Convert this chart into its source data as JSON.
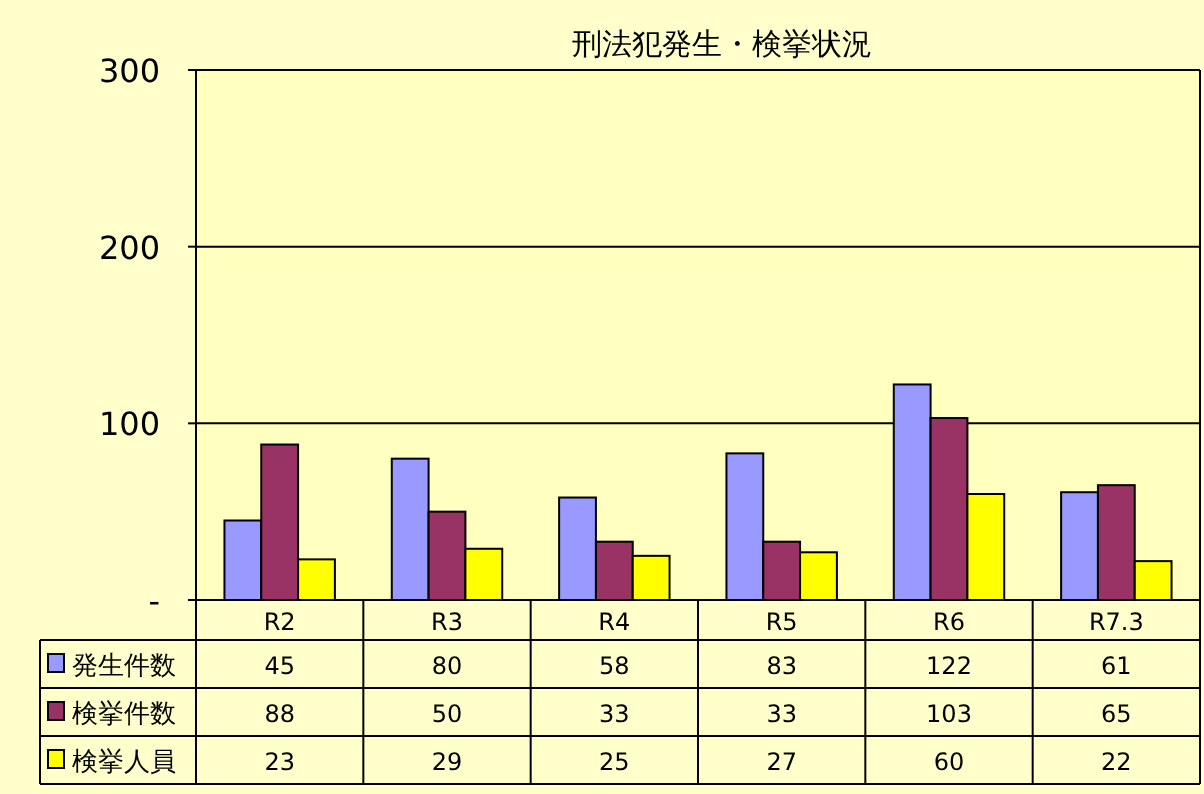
{
  "chart_data": {
    "type": "bar",
    "title": "刑法犯発生・検挙状況",
    "categories": [
      "R2",
      "R3",
      "R4",
      "R5",
      "R6",
      "R7.3"
    ],
    "series": [
      {
        "name": "発生件数",
        "color": "#9999ff",
        "values": [
          45,
          80,
          58,
          83,
          122,
          61
        ]
      },
      {
        "name": "検挙件数",
        "color": "#993366",
        "values": [
          88,
          50,
          33,
          33,
          103,
          65
        ]
      },
      {
        "name": "検挙人員",
        "color": "#ffff00",
        "values": [
          23,
          29,
          25,
          27,
          60,
          22
        ]
      }
    ],
    "ylim": [
      0,
      300
    ],
    "yticks": [
      {
        "value": 0,
        "label": "-"
      },
      100,
      200,
      300
    ],
    "grid": "y",
    "legend": "bottom",
    "data_labels": true
  }
}
